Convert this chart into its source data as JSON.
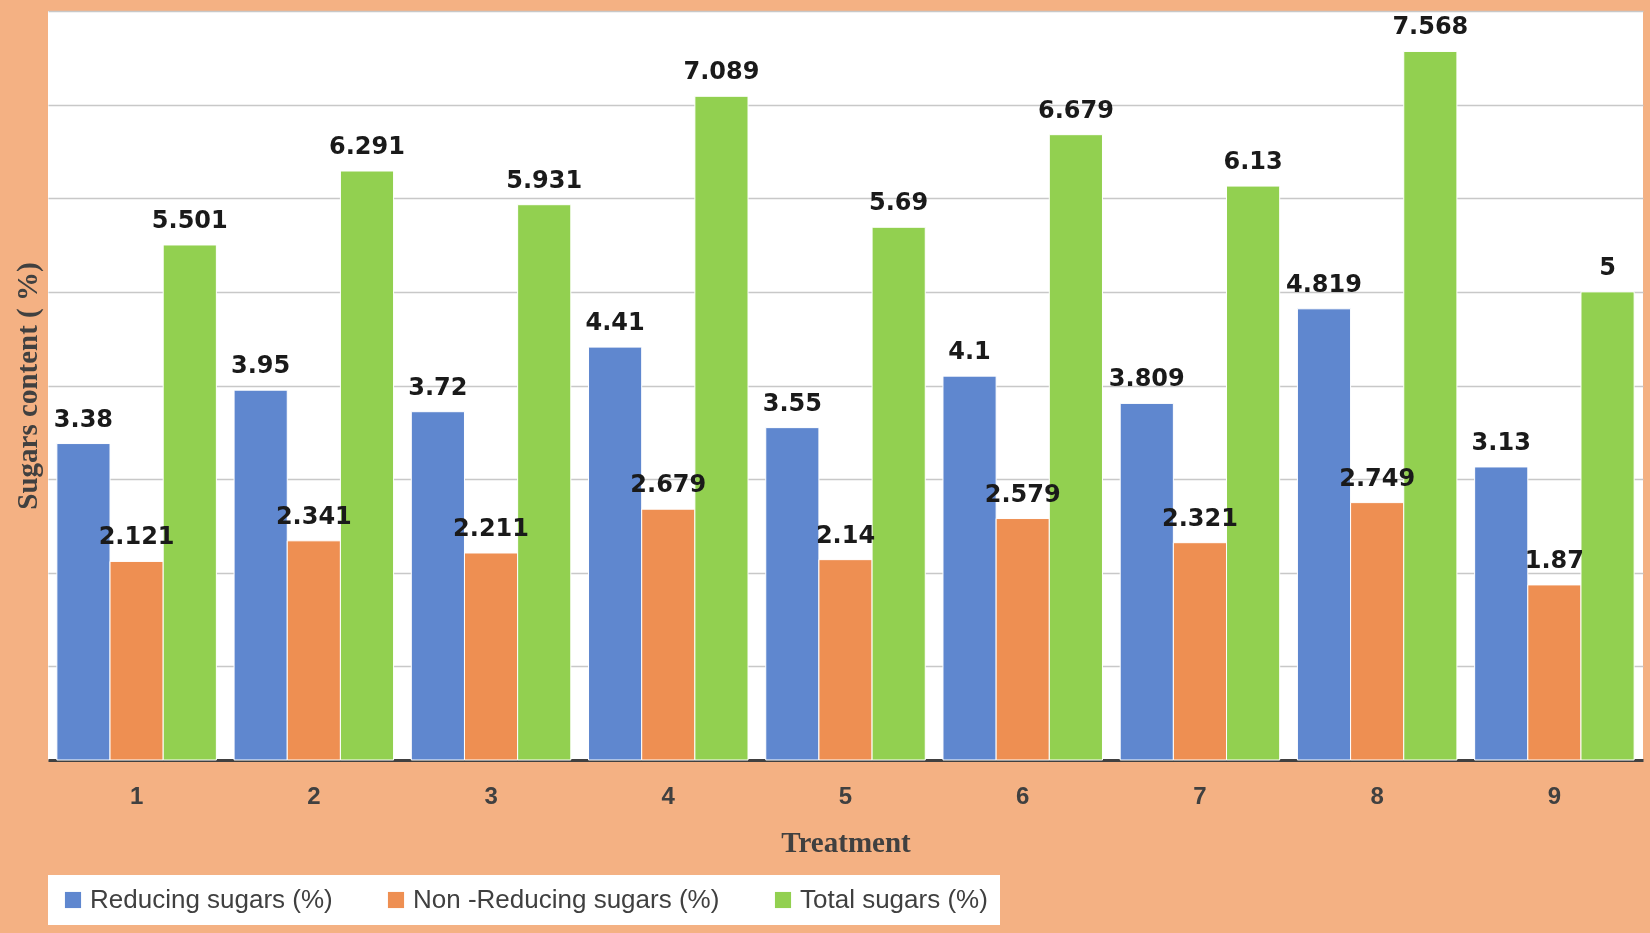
{
  "chart_data": {
    "type": "bar",
    "xlabel": "Treatment",
    "ylabel": "Sugars content ( %)",
    "categories": [
      "1",
      "2",
      "3",
      "4",
      "5",
      "6",
      "7",
      "8",
      "9"
    ],
    "series": [
      {
        "name": "Reducing sugars (%)",
        "color": "#5f87cf",
        "values": [
          3.38,
          3.95,
          3.72,
          4.41,
          3.55,
          4.1,
          3.809,
          4.819,
          3.13
        ]
      },
      {
        "name": "Non -Reducing sugars (%)",
        "color": "#ee8f52",
        "values": [
          2.121,
          2.341,
          2.211,
          2.679,
          2.14,
          2.579,
          2.321,
          2.749,
          1.87
        ]
      },
      {
        "name": "Total sugars (%)",
        "color": "#92d050",
        "values": [
          5.501,
          6.291,
          5.931,
          7.089,
          5.69,
          6.679,
          6.13,
          7.568,
          5
        ]
      }
    ],
    "ylim": [
      0,
      8
    ],
    "yticks": [
      {
        "value": 0,
        "label": null
      },
      {
        "value": 1,
        "label": null
      },
      {
        "value": 2,
        "label": null
      },
      {
        "value": 3,
        "label": null
      },
      {
        "value": 4,
        "label": null
      },
      {
        "value": 5,
        "label": null
      },
      {
        "value": 6,
        "label": null
      },
      {
        "value": 7,
        "label": null
      },
      {
        "value": 8,
        "label": null
      }
    ],
    "tick_labels": "x",
    "grid": "y",
    "legend": "bottom",
    "data_labels": true
  }
}
